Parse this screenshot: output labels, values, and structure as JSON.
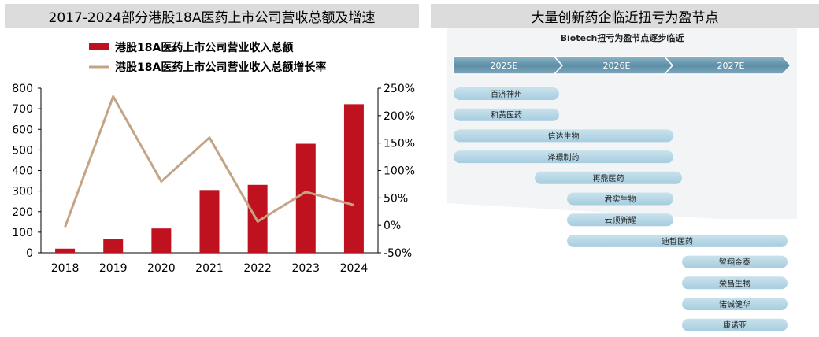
{
  "left_panel": {
    "title": "2017-2024部分港股18A医药上市公司营收总额及增速"
  },
  "right_panel": {
    "title": "大量创新药企临近扭亏为盈节点"
  },
  "chart_data": [
    {
      "type": "bar",
      "title": "2017-2024部分港股18A医药上市公司营收总额及增速",
      "categories": [
        "2018",
        "2019",
        "2020",
        "2021",
        "2022",
        "2023",
        "2024"
      ],
      "series": [
        {
          "name": "港股18A医药上市公司营业收入总额",
          "type": "bar",
          "axis": "left",
          "values": [
            20,
            65,
            118,
            305,
            330,
            530,
            722
          ],
          "color": "#c0111f"
        },
        {
          "name": "港股18A医药上市公司营业收入总额增长率",
          "type": "line",
          "axis": "right",
          "values": [
            -3,
            235,
            80,
            160,
            7,
            61,
            37
          ],
          "color": "#c4a484"
        }
      ],
      "y_left": {
        "min": 0,
        "max": 800,
        "step": 100,
        "ticks": [
          "0",
          "100",
          "200",
          "300",
          "400",
          "500",
          "600",
          "700",
          "800"
        ]
      },
      "y_right": {
        "min": -50,
        "max": 250,
        "step": 50,
        "ticks": [
          "-50%",
          "0%",
          "50%",
          "100%",
          "150%",
          "200%",
          "250%"
        ]
      },
      "grid": false,
      "legend": "top"
    },
    {
      "type": "table",
      "title": "Biotech扭亏为盈节点逐步临近",
      "phases": [
        "2025E",
        "2026E",
        "2027E"
      ],
      "companies": [
        {
          "name": "百济神州",
          "start": 0,
          "end": 1
        },
        {
          "name": "和黄医药",
          "start": 0,
          "end": 1
        },
        {
          "name": "信达生物",
          "start": 0,
          "end": 2
        },
        {
          "name": "泽璟制药",
          "start": 0,
          "end": 2
        },
        {
          "name": "再鼎医药",
          "start": 1,
          "end": 2
        },
        {
          "name": "君实生物",
          "start": 1,
          "end": 2
        },
        {
          "name": "云顶新耀",
          "start": 1,
          "end": 2
        },
        {
          "name": "迪哲医药",
          "start": 1,
          "end": 3
        },
        {
          "name": "智翔金泰",
          "start": 2,
          "end": 3
        },
        {
          "name": "荣昌生物",
          "start": 2,
          "end": 3
        },
        {
          "name": "诺诚健华",
          "start": 2,
          "end": 3
        },
        {
          "name": "康诺亚",
          "start": 2,
          "end": 3
        }
      ]
    }
  ],
  "colors": {
    "bar": "#c0111f",
    "line": "#c4a484",
    "phase_arrow": "#5d8ea6",
    "pill": "#b0d3e2",
    "header_bg": "#dcdcdc"
  }
}
